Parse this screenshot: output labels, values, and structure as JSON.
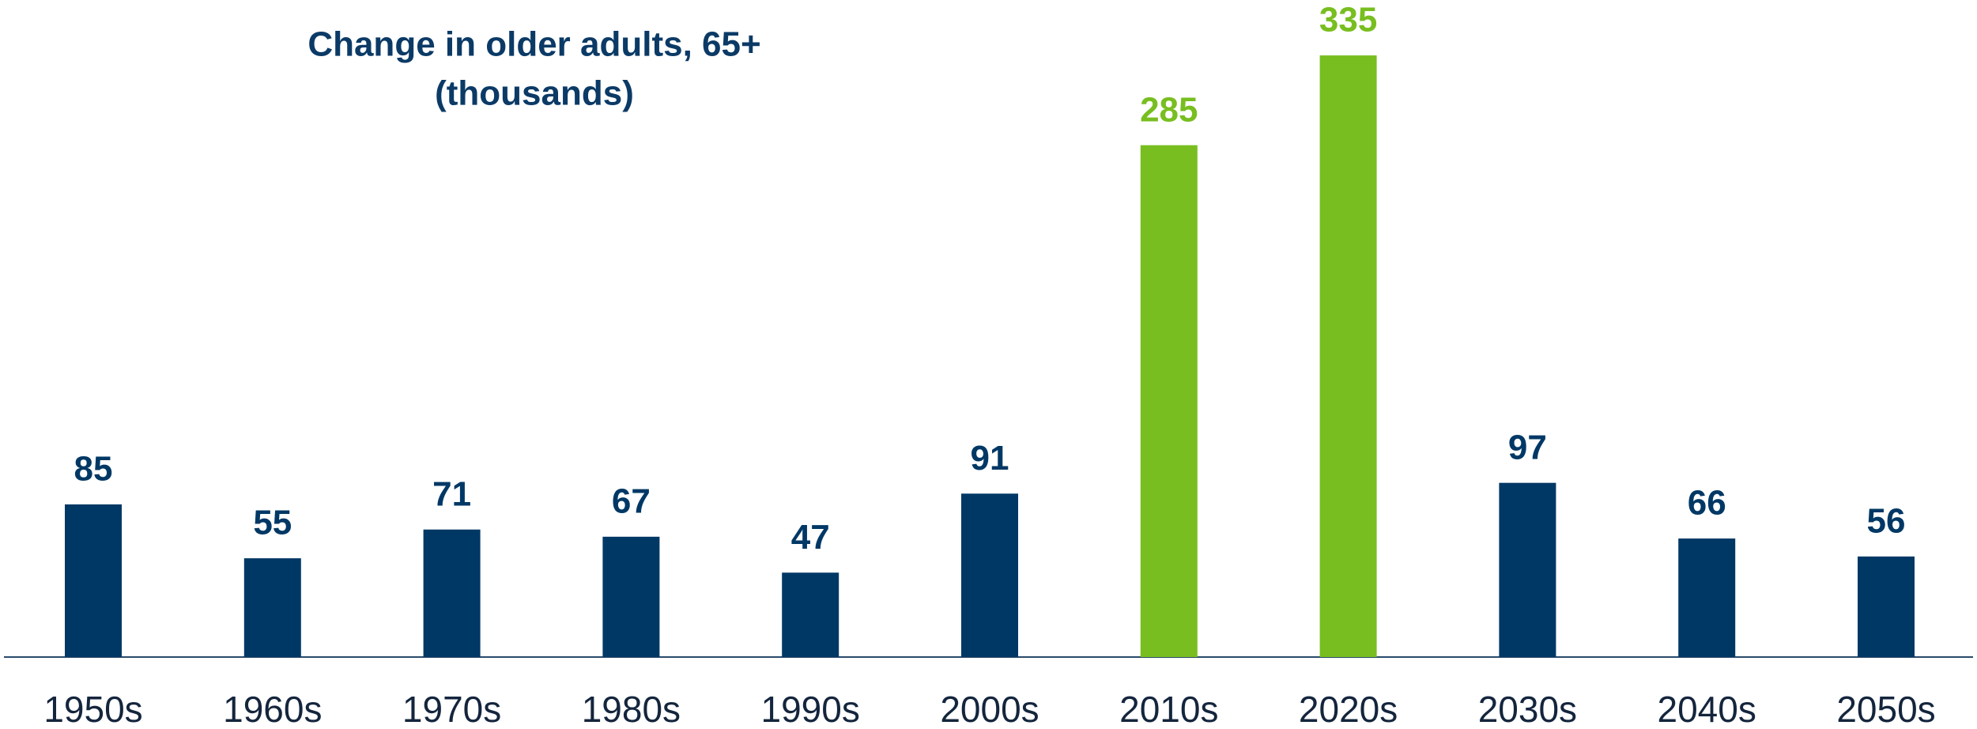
{
  "chart_data": {
    "type": "bar",
    "title": [
      "Change in older adults, 65+",
      "(thousands)"
    ],
    "categories": [
      "1950s",
      "1960s",
      "1970s",
      "1980s",
      "1990s",
      "2000s",
      "2010s",
      "2020s",
      "2030s",
      "2040s",
      "2050s"
    ],
    "values": [
      85,
      55,
      71,
      67,
      47,
      91,
      285,
      335,
      97,
      66,
      56
    ],
    "colors": [
      "#003865",
      "#003865",
      "#003865",
      "#003865",
      "#003865",
      "#003865",
      "#78be20",
      "#78be20",
      "#003865",
      "#003865",
      "#003865"
    ],
    "ylim": [
      0,
      350
    ]
  }
}
